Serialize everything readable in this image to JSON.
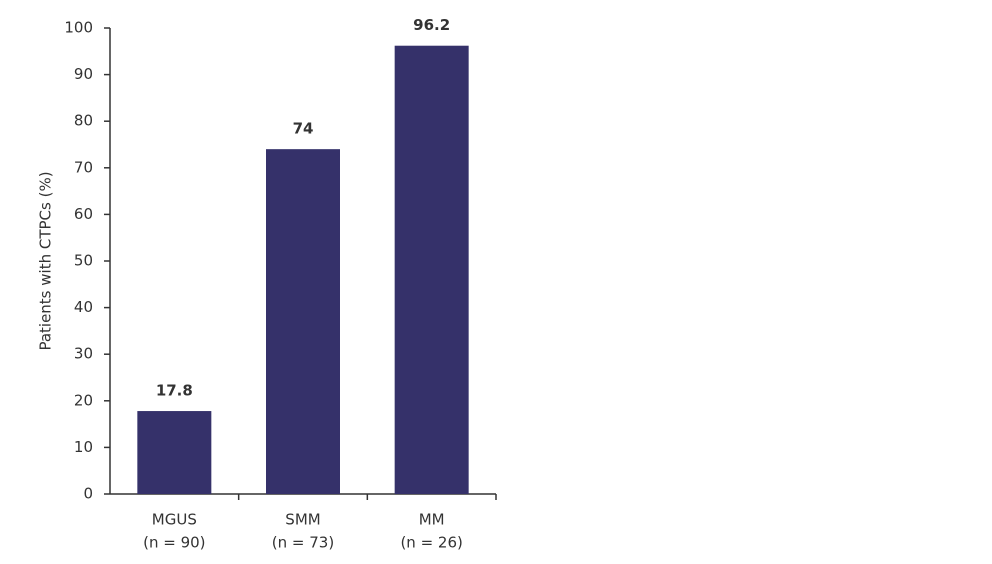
{
  "chart_data": {
    "type": "bar",
    "ylabel": "Patients with CTPCs (%)",
    "categories": [
      [
        "MGUS",
        "(n = 90)"
      ],
      [
        "SMM",
        "(n = 73)"
      ],
      [
        "MM",
        "(n = 26)"
      ]
    ],
    "values": [
      17.8,
      74,
      96.2
    ],
    "color": "#35316a",
    "ylim": [
      0,
      100
    ],
    "yticks": [
      0,
      10,
      20,
      30,
      40,
      50,
      60,
      70,
      80,
      90,
      100
    ],
    "grid": false
  }
}
